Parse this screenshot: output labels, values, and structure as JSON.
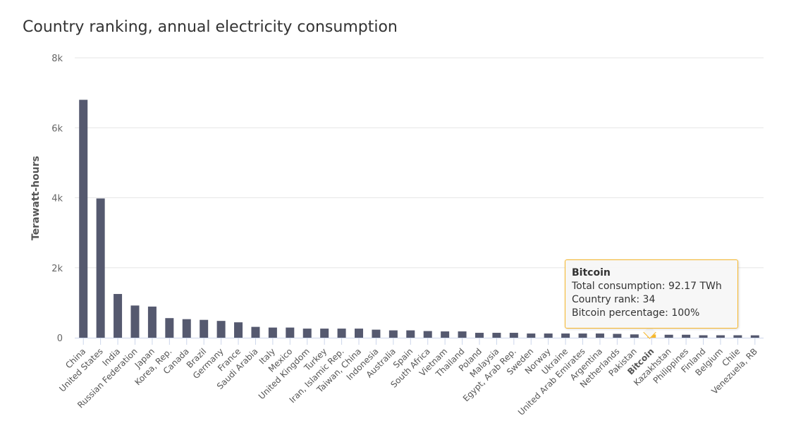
{
  "chart_data": {
    "type": "bar",
    "title": "Country ranking, annual electricity consumption",
    "xlabel": "",
    "ylabel": "Terawatt-hours",
    "ylim": [
      0,
      8000
    ],
    "yticks": [
      0,
      2000,
      4000,
      6000,
      8000
    ],
    "ytick_labels": [
      "0",
      "2k",
      "4k",
      "6k",
      "8k"
    ],
    "grid": true,
    "categories": [
      "China",
      "United States",
      "India",
      "Russian Federation",
      "Japan",
      "Korea, Rep.",
      "Canada",
      "Brazil",
      "Germany",
      "France",
      "Saudi Arabia",
      "Italy",
      "Mexico",
      "United Kingdom",
      "Turkey",
      "Iran, Islamic Rep.",
      "Taiwan, China",
      "Indonesia",
      "Australia",
      "Spain",
      "South Africa",
      "Vietnam",
      "Thailand",
      "Poland",
      "Malaysia",
      "Egypt, Arab Rep.",
      "Sweden",
      "Norway",
      "Ukraine",
      "United Arab Emirates",
      "Argentina",
      "Netherlands",
      "Pakistan",
      "Bitcoin",
      "Kazakhstan",
      "Philippines",
      "Finland",
      "Belgium",
      "Chile",
      "Venezuela, RB"
    ],
    "values": [
      6800,
      3980,
      1250,
      920,
      890,
      560,
      530,
      510,
      480,
      440,
      310,
      290,
      290,
      260,
      260,
      260,
      260,
      230,
      210,
      210,
      190,
      180,
      180,
      140,
      140,
      140,
      120,
      120,
      120,
      120,
      120,
      110,
      95,
      92.17,
      85,
      85,
      70,
      70,
      70,
      68
    ],
    "highlight": "Bitcoin",
    "colors": {
      "bar": "#55596f",
      "highlight": "#f7b72b",
      "grid": "#e6e6e6",
      "axis": "#ccd6eb"
    }
  },
  "tooltip": {
    "title": "Bitcoin",
    "line1": "Total consumption: 92.17 TWh",
    "line2": "Country rank: 34",
    "line3": "Bitcoin percentage: 100%"
  }
}
